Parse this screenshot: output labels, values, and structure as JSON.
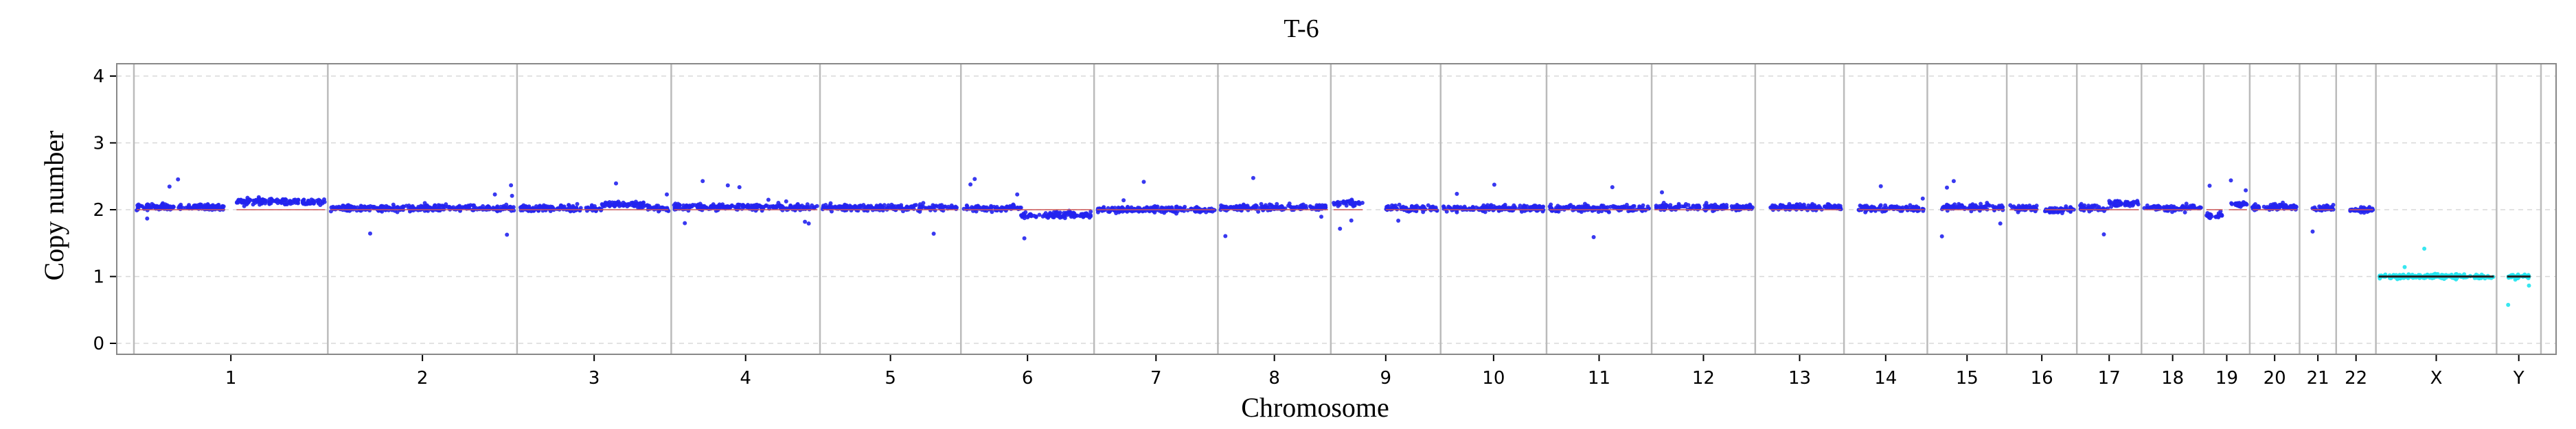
{
  "chart_data": {
    "type": "scatter",
    "title": "T-6",
    "xlabel": "Chromosome",
    "ylabel": "Copy number",
    "ylim": [
      0,
      4
    ],
    "y_ticks": [
      "0",
      "1",
      "2",
      "3",
      "4"
    ],
    "grid": "horizontal dashed",
    "chromosomes": [
      {
        "label": "1",
        "size": 249,
        "level": 2.0,
        "segments": [
          [
            0,
            0.47,
            2.04
          ],
          [
            0.53,
            1.0,
            2.12
          ]
        ],
        "type": "auto"
      },
      {
        "label": "2",
        "size": 243,
        "level": 2.0,
        "segments": [
          [
            0,
            1.0,
            2.02
          ]
        ],
        "type": "auto"
      },
      {
        "label": "3",
        "size": 198,
        "level": 2.0,
        "segments": [
          [
            0,
            0.55,
            2.02
          ],
          [
            0.55,
            0.85,
            2.08
          ],
          [
            0.85,
            1.0,
            2.02
          ]
        ],
        "type": "auto"
      },
      {
        "label": "4",
        "size": 191,
        "level": 2.0,
        "segments": [
          [
            0,
            1.0,
            2.04
          ]
        ],
        "type": "auto"
      },
      {
        "label": "5",
        "size": 181,
        "level": 2.0,
        "segments": [
          [
            0,
            1.0,
            2.03
          ]
        ],
        "type": "auto"
      },
      {
        "label": "6",
        "size": 171,
        "level": 2.0,
        "segments": [
          [
            0,
            0.45,
            2.02
          ],
          [
            0.45,
            1.0,
            1.92
          ]
        ],
        "type": "auto"
      },
      {
        "label": "7",
        "size": 159,
        "level": 2.0,
        "segments": [
          [
            0,
            1.0,
            2.0
          ]
        ],
        "type": "auto"
      },
      {
        "label": "8",
        "size": 145,
        "level": 2.0,
        "segments": [
          [
            0,
            1.0,
            2.03
          ]
        ],
        "type": "auto"
      },
      {
        "label": "9",
        "size": 141,
        "level": 2.0,
        "segments": [
          [
            0,
            0.28,
            2.1
          ],
          [
            0.5,
            1.0,
            2.02
          ]
        ],
        "type": "auto"
      },
      {
        "label": "10",
        "size": 136,
        "level": 2.0,
        "segments": [
          [
            0,
            1.0,
            2.02
          ]
        ],
        "type": "auto"
      },
      {
        "label": "11",
        "size": 135,
        "level": 2.0,
        "segments": [
          [
            0,
            1.0,
            2.02
          ]
        ],
        "type": "auto"
      },
      {
        "label": "12",
        "size": 133,
        "level": 2.0,
        "segments": [
          [
            0,
            1.0,
            2.04
          ]
        ],
        "type": "auto"
      },
      {
        "label": "13",
        "size": 114,
        "level": 2.0,
        "segments": [
          [
            0.15,
            1.0,
            2.04
          ]
        ],
        "type": "auto"
      },
      {
        "label": "14",
        "size": 107,
        "level": 2.0,
        "segments": [
          [
            0.15,
            1.0,
            2.02
          ]
        ],
        "type": "auto"
      },
      {
        "label": "15",
        "size": 102,
        "level": 2.0,
        "segments": [
          [
            0.15,
            1.0,
            2.04
          ]
        ],
        "type": "auto"
      },
      {
        "label": "16",
        "size": 90,
        "level": 2.0,
        "segments": [
          [
            0,
            0.45,
            2.02
          ],
          [
            0.55,
            1.0,
            2.0
          ]
        ],
        "type": "auto"
      },
      {
        "label": "17",
        "size": 83,
        "level": 2.0,
        "segments": [
          [
            0,
            0.5,
            2.02
          ],
          [
            0.5,
            1.0,
            2.1
          ]
        ],
        "type": "auto"
      },
      {
        "label": "18",
        "size": 80,
        "level": 2.0,
        "segments": [
          [
            0,
            1.0,
            2.02
          ]
        ],
        "type": "auto"
      },
      {
        "label": "19",
        "size": 59,
        "level": 2.0,
        "segments": [
          [
            0,
            0.4,
            1.92
          ],
          [
            0.55,
            1.0,
            2.08
          ]
        ],
        "type": "auto"
      },
      {
        "label": "20",
        "size": 64,
        "level": 2.0,
        "segments": [
          [
            0,
            1.0,
            2.04
          ]
        ],
        "type": "auto"
      },
      {
        "label": "21",
        "size": 47,
        "level": 2.0,
        "segments": [
          [
            0.3,
            1.0,
            2.02
          ]
        ],
        "type": "auto"
      },
      {
        "label": "22",
        "size": 51,
        "level": 2.0,
        "segments": [
          [
            0.3,
            1.0,
            2.0
          ]
        ],
        "type": "auto"
      },
      {
        "label": "X",
        "size": 155,
        "level": 1.0,
        "segments": [
          [
            0,
            1.0,
            1.0
          ]
        ],
        "type": "sex"
      },
      {
        "label": "Y",
        "size": 57,
        "level": 1.0,
        "segments": [
          [
            0.2,
            0.8,
            1.0
          ]
        ],
        "type": "sex"
      }
    ],
    "colors": {
      "autosome_points": "#2323ee",
      "sex_points": "#22e4ee",
      "segment_line": "#cc5555",
      "sex_segment_line": "#222222",
      "separator": "#bbbbbb",
      "grid": "#d8d8d8",
      "frame": "#888888"
    }
  }
}
